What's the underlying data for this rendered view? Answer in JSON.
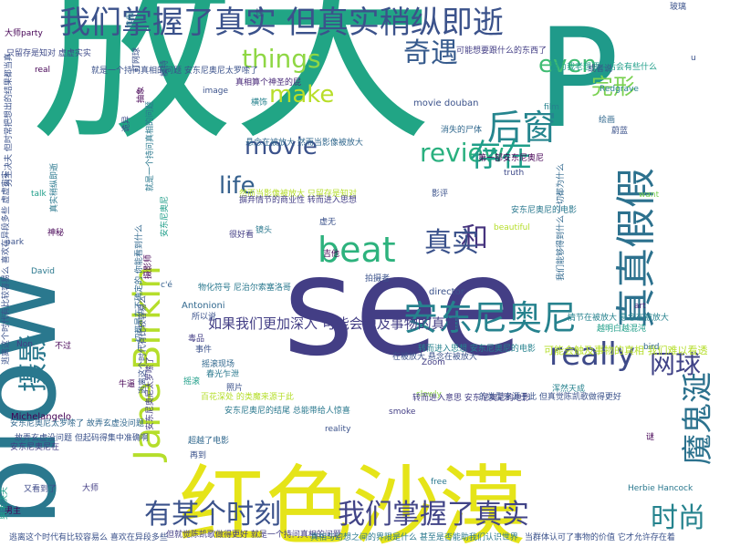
{
  "words": [
    {
      "text": "放大",
      "color": "#21a585",
      "size": 220,
      "dir": "h"
    },
    {
      "text": "P",
      "color": "#1f9a8a",
      "size": 150,
      "dir": "h"
    },
    {
      "text": "see",
      "color": "#433e85",
      "size": 150,
      "dir": "h"
    },
    {
      "text": "blow",
      "color": "#2a788e",
      "size": 120,
      "dir": "v"
    },
    {
      "text": "红色沙漠",
      "color": "#e5e419",
      "size": 95,
      "dir": "h"
    },
    {
      "text": "我们掌握了真实 但真实稍纵即逝",
      "color": "#3b528b",
      "size": 34,
      "dir": "h"
    },
    {
      "text": "真真假假",
      "color": "#2c718e",
      "size": 44,
      "dir": "v"
    },
    {
      "text": "奇遇",
      "color": "#375b8d",
      "size": 30,
      "dir": "h"
    },
    {
      "text": "后窗",
      "color": "#25858e",
      "size": 38,
      "dir": "h"
    },
    {
      "text": "things",
      "color": "#8fd744",
      "size": 28,
      "dir": "h"
    },
    {
      "text": "even",
      "color": "#3fbc73",
      "size": 26,
      "dir": "h"
    },
    {
      "text": "make",
      "color": "#b8de29",
      "size": 26,
      "dir": "h"
    },
    {
      "text": "完形",
      "color": "#7ad151",
      "size": 24,
      "dir": "h"
    },
    {
      "text": "review",
      "color": "#2ab07f",
      "size": 28,
      "dir": "h"
    },
    {
      "text": "movie",
      "color": "#3b528b",
      "size": 26,
      "dir": "h"
    },
    {
      "text": "存在",
      "color": "#1f9e89",
      "size": 34,
      "dir": "h"
    },
    {
      "text": "life",
      "color": "#35608d",
      "size": 26,
      "dir": "h"
    },
    {
      "text": "beat",
      "color": "#2db27d",
      "size": 38,
      "dir": "h"
    },
    {
      "text": "和",
      "color": "#46337e",
      "size": 30,
      "dir": "h"
    },
    {
      "text": "真实",
      "color": "#3b528b",
      "size": 30,
      "dir": "h"
    },
    {
      "text": "安东尼奥尼",
      "color": "#26828e",
      "size": 38,
      "dir": "h"
    },
    {
      "text": "really",
      "color": "#3e4a89",
      "size": 34,
      "dir": "h"
    },
    {
      "text": "网球",
      "color": "#404387",
      "size": 28,
      "dir": "h"
    },
    {
      "text": "Jane Birkin",
      "color": "#b5de2b",
      "size": 40,
      "dir": "v"
    },
    {
      "text": "摄影",
      "color": "#2a788e",
      "size": 32,
      "dir": "v"
    },
    {
      "text": "魔鬼涎",
      "color": "#2c728e",
      "size": 34,
      "dir": "v"
    },
    {
      "text": "有某个时刻",
      "color": "#3b528b",
      "size": 30,
      "dir": "h"
    },
    {
      "text": "我们掌握了真实",
      "color": "#414487",
      "size": 30,
      "dir": "h"
    },
    {
      "text": "时尚",
      "color": "#25838e",
      "size": 30,
      "dir": "h"
    },
    {
      "text": "如果我们更加深入 可能会触及事物的真相",
      "color": "#433e85",
      "size": 15,
      "dir": "h"
    },
    {
      "text": "可能会触及事物的真相 我们难以看透",
      "color": "#b5de2b",
      "size": 11,
      "dir": "h"
    },
    {
      "text": "movie douban",
      "color": "#3b528b",
      "size": 10,
      "dir": "h"
    },
    {
      "text": "director",
      "color": "#3b528b",
      "size": 10,
      "dir": "h"
    },
    {
      "text": "Antonioni",
      "color": "#31688e",
      "size": 10,
      "dir": "h"
    },
    {
      "text": "Michelangelo",
      "color": "#440154",
      "size": 10,
      "dir": "h"
    },
    {
      "text": "David",
      "color": "#2a788e",
      "size": 9,
      "dir": "h"
    },
    {
      "text": "Zoom",
      "color": "#433e85",
      "size": 9,
      "dir": "h"
    },
    {
      "text": "film",
      "color": "#26828e",
      "size": 9,
      "dir": "h"
    },
    {
      "text": "image",
      "color": "#3b528b",
      "size": 9,
      "dir": "h"
    },
    {
      "text": "real",
      "color": "#440154",
      "size": 9,
      "dir": "h"
    },
    {
      "text": "talk",
      "color": "#1f9e89",
      "size": 9,
      "dir": "h"
    },
    {
      "text": "want",
      "color": "#7ad151",
      "size": 9,
      "dir": "h"
    },
    {
      "text": "truth",
      "color": "#3e4a89",
      "size": 9,
      "dir": "h"
    },
    {
      "text": "beautiful",
      "color": "#b5de2b",
      "size": 9,
      "dir": "h"
    },
    {
      "text": "art",
      "color": "#482878",
      "size": 9,
      "dir": "h"
    },
    {
      "text": "bird",
      "color": "#31688e",
      "size": 9,
      "dir": "h"
    },
    {
      "text": "free",
      "color": "#2a788e",
      "size": 9,
      "dir": "h"
    },
    {
      "text": "slowly",
      "color": "#8fd744",
      "size": 9,
      "dir": "h"
    },
    {
      "text": "reality",
      "color": "#3b528b",
      "size": 9,
      "dir": "h"
    },
    {
      "text": "smoke",
      "color": "#433e85",
      "size": 9,
      "dir": "h"
    },
    {
      "text": "Redgrave",
      "color": "#26828e",
      "size": 9,
      "dir": "h"
    },
    {
      "text": "Herbie Hancock",
      "color": "#2a788e",
      "size": 9,
      "dir": "h"
    },
    {
      "text": "park",
      "color": "#3b528b",
      "size": 9,
      "dir": "h"
    },
    {
      "text": "Non",
      "color": "#433e85",
      "size": 9,
      "dir": "h"
    },
    {
      "text": "c'é",
      "color": "#35608d",
      "size": 9,
      "dir": "h"
    },
    {
      "text": "u",
      "color": "#3b528b",
      "size": 9,
      "dir": "h"
    },
    {
      "text": "悬念在被放大 然而当影像被放大",
      "color": "#31688e",
      "size": 9,
      "dir": "h"
    },
    {
      "text": "然而当影像被放大 只留存是知对",
      "color": "#b5de2b",
      "size": 9,
      "dir": "h"
    },
    {
      "text": "摒弃情节的商业性 转而进入思想",
      "color": "#433e85",
      "size": 9,
      "dir": "h"
    },
    {
      "text": "情节在被放大 悬念在被放大",
      "color": "#26828e",
      "size": 9,
      "dir": "h"
    },
    {
      "text": "越明白越混沌",
      "color": "#1f9e89",
      "size": 9,
      "dir": "h"
    },
    {
      "text": "转而进入思想 安东尼奥尼的电影",
      "color": "#26828e",
      "size": 9,
      "dir": "h"
    },
    {
      "text": "安东尼奥尼太罗嗦了 故弄玄虚没问题",
      "color": "#31688e",
      "size": 9,
      "dir": "h"
    },
    {
      "text": "安东尼奥尼在",
      "color": "#433e85",
      "size": 9,
      "dir": "h"
    },
    {
      "text": "故弄玄虚没问题 但起码得集中准确啊",
      "color": "#3b528b",
      "size": 9,
      "dir": "h"
    },
    {
      "text": "就是一个持问真相的问题 安东尼奥尼太罗嗦了",
      "color": "#3b528b",
      "size": 9,
      "dir": "h"
    },
    {
      "text": "只留存是知对 虚虚实实",
      "color": "#3e4a89",
      "size": 9,
      "dir": "h"
    },
    {
      "text": "真相算个神圣的屁",
      "color": "#482878",
      "size": 9,
      "dir": "h"
    },
    {
      "text": "安东尼奥尼的电影",
      "color": "#2a788e",
      "size": 9,
      "dir": "h"
    },
    {
      "text": "可能想要跟什么的东西了",
      "color": "#433e85",
      "size": 9,
      "dir": "h"
    },
    {
      "text": "因为我老想要离后会有些什么",
      "color": "#1f9e89",
      "size": 9,
      "dir": "h"
    },
    {
      "text": "或者说",
      "color": "#3b528b",
      "size": 9,
      "dir": "h"
    },
    {
      "text": "第一部安东尼奥尼",
      "color": "#440154",
      "size": 9,
      "dir": "h"
    },
    {
      "text": "消失的尸体",
      "color": "#31688e",
      "size": 9,
      "dir": "h"
    },
    {
      "text": "很好看",
      "color": "#433e85",
      "size": 9,
      "dir": "h"
    },
    {
      "text": "拍摄者",
      "color": "#3b528b",
      "size": 9,
      "dir": "h"
    },
    {
      "text": "吉他",
      "color": "#440154",
      "size": 9,
      "dir": "h"
    },
    {
      "text": "虚无",
      "color": "#3b528b",
      "size": 9,
      "dir": "h"
    },
    {
      "text": "横饰",
      "color": "#26828e",
      "size": 9,
      "dir": "h"
    },
    {
      "text": "物化符号 尼治尔索塞洛哥",
      "color": "#2a788e",
      "size": 9,
      "dir": "h"
    },
    {
      "text": "所以说",
      "color": "#3b528b",
      "size": 9,
      "dir": "h"
    },
    {
      "text": "毒品",
      "color": "#433e85",
      "size": 9,
      "dir": "h"
    },
    {
      "text": "不过",
      "color": "#440154",
      "size": 9,
      "dir": "h"
    },
    {
      "text": "事件",
      "color": "#3b528b",
      "size": 9,
      "dir": "h"
    },
    {
      "text": "摇滚现场",
      "color": "#31688e",
      "size": 9,
      "dir": "h"
    },
    {
      "text": "春光乍泄",
      "color": "#2a788e",
      "size": 9,
      "dir": "h"
    },
    {
      "text": "百花深处 的类魔来源于此",
      "color": "#b5de2b",
      "size": 9,
      "dir": "h"
    },
    {
      "text": "安东尼奥尼的结尾 总能带给人惊喜",
      "color": "#2a788e",
      "size": 9,
      "dir": "h"
    },
    {
      "text": "在被放大 悬念在被放大",
      "color": "#3b528b",
      "size": 9,
      "dir": "h"
    },
    {
      "text": "转而进入意思 安东尼奥尼的电影",
      "color": "#433e85",
      "size": 9,
      "dir": "h"
    },
    {
      "text": "的类型来源于此 但真觉陈凯歌做得更好",
      "color": "#3b528b",
      "size": 9,
      "dir": "h"
    },
    {
      "text": "浑然天成",
      "color": "#26828e",
      "size": 9,
      "dir": "h"
    },
    {
      "text": "神秘",
      "color": "#440154",
      "size": 9,
      "dir": "h"
    },
    {
      "text": "影评",
      "color": "#3b528b",
      "size": 9,
      "dir": "h"
    },
    {
      "text": "绘画",
      "color": "#31688e",
      "size": 9,
      "dir": "h"
    },
    {
      "text": "蔚蓝",
      "color": "#3b528b",
      "size": 9,
      "dir": "h"
    },
    {
      "text": "大师",
      "color": "#433e85",
      "size": 9,
      "dir": "h"
    },
    {
      "text": "又看到了",
      "color": "#3e4a89",
      "size": 9,
      "dir": "h"
    },
    {
      "text": "牛逼",
      "color": "#440154",
      "size": 9,
      "dir": "h"
    },
    {
      "text": "再到",
      "color": "#3b528b",
      "size": 9,
      "dir": "h"
    },
    {
      "text": "摇滚",
      "color": "#1f9e89",
      "size": 9,
      "dir": "h"
    },
    {
      "text": "超越了电影",
      "color": "#31688e",
      "size": 9,
      "dir": "h"
    },
    {
      "text": "男主",
      "color": "#440154",
      "size": 9,
      "dir": "h"
    },
    {
      "text": "玻璃",
      "color": "#3b528b",
      "size": 9,
      "dir": "h"
    },
    {
      "text": "性",
      "color": "#433e85",
      "size": 9,
      "dir": "h"
    },
    {
      "text": "镜头",
      "color": "#2a788e",
      "size": 9,
      "dir": "h"
    },
    {
      "text": "照片",
      "color": "#3b528b",
      "size": 9,
      "dir": "h"
    },
    {
      "text": "谜",
      "color": "#440154",
      "size": 9,
      "dir": "h"
    },
    {
      "text": "逃离这个时代有比较容易么 喜欢在异段多些",
      "color": "#3b528b",
      "size": 9,
      "dir": "h"
    },
    {
      "text": "但就觉陈凯歌做得更好 就是一个持问真相的问题",
      "color": "#433e85",
      "size": 9,
      "dir": "h"
    },
    {
      "text": "真相与幻想之间的界限是什么 甚至是否能助我们认识世界",
      "color": "#2a788e",
      "size": 9,
      "dir": "h"
    },
    {
      "text": "当群体认可了事物的价值 它才允许存在着",
      "color": "#3b528b",
      "size": 9,
      "dir": "h"
    },
    {
      "text": "男主决夫",
      "color": "#1f9e89",
      "size": 9,
      "dir": "v"
    },
    {
      "text": "逃离这个时代有比较容易么 喜欢在异段多些 虚虚实实",
      "color": "#3b528b",
      "size": 9,
      "dir": "v"
    },
    {
      "text": "我们能够得到什么 一切都为什么",
      "color": "#31688e",
      "size": 9,
      "dir": "v"
    },
    {
      "text": "大师party",
      "color": "#440154",
      "size": 9,
      "dir": "h"
    },
    {
      "text": "男主决夫 但时常把想出的结果都当真",
      "color": "#3b528b",
      "size": 9,
      "dir": "v"
    },
    {
      "text": "真实稍纵即逝",
      "color": "#2a788e",
      "size": 9,
      "dir": "v"
    },
    {
      "text": "打网球",
      "color": "#3b528b",
      "size": 9,
      "dir": "v"
    },
    {
      "text": "抽象",
      "color": "#440154",
      "size": 9,
      "dir": "v"
    },
    {
      "text": "诡异",
      "color": "#3e4a89",
      "size": 9,
      "dir": "v"
    },
    {
      "text": "就是一个持问真相的问题",
      "color": "#2a788e",
      "size": 9,
      "dir": "v"
    },
    {
      "text": "安东尼奥尼",
      "color": "#1f9e89",
      "size": 9,
      "dir": "v"
    },
    {
      "text": "摄影师",
      "color": "#440154",
      "size": 9,
      "dir": "v"
    },
    {
      "text": "一切都是在不确定的 你能看到什么",
      "color": "#31688e",
      "size": 9,
      "dir": "v"
    },
    {
      "text": "逃离这个时代有比较容易么",
      "color": "#3b528b",
      "size": 9,
      "dir": "v"
    },
    {
      "text": "安东尼奥尼太罗嗦了",
      "color": "#433e85",
      "size": 9,
      "dir": "v"
    },
    {
      "text": "真假",
      "color": "#2a788e",
      "size": 9,
      "dir": "v"
    },
    {
      "text": "模特",
      "color": "#3b528b",
      "size": 9,
      "dir": "v"
    }
  ]
}
